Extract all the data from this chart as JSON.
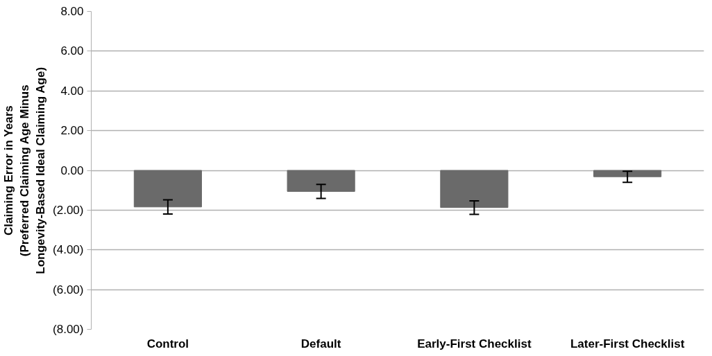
{
  "chart_data": {
    "type": "bar",
    "ylabel": "Claiming Error in Years\n(Preferred Claiming Age Minus\nLongevity-Based Ideal Claiming Age)",
    "categories": [
      "Control",
      "Default",
      "Early-First Checklist",
      "Later-First Checklist"
    ],
    "values": [
      -1.84,
      -1.06,
      -1.87,
      -0.32
    ],
    "errors": [
      0.36,
      0.35,
      0.34,
      0.28
    ],
    "color": "#6a6a6a",
    "ylim": [
      -8,
      8
    ],
    "yticks": [
      {
        "value": -8,
        "label": "(8.00)"
      },
      {
        "value": -6,
        "label": "(6.00)"
      },
      {
        "value": -4,
        "label": "(4.00)"
      },
      {
        "value": -2,
        "label": "(2.00)"
      },
      {
        "value": 0,
        "label": "0.00"
      },
      {
        "value": 2,
        "label": "2.00"
      },
      {
        "value": 4,
        "label": "4.00"
      },
      {
        "value": 6,
        "label": "6.00"
      },
      {
        "value": 8,
        "label": "8.00"
      }
    ],
    "grid": "y"
  }
}
